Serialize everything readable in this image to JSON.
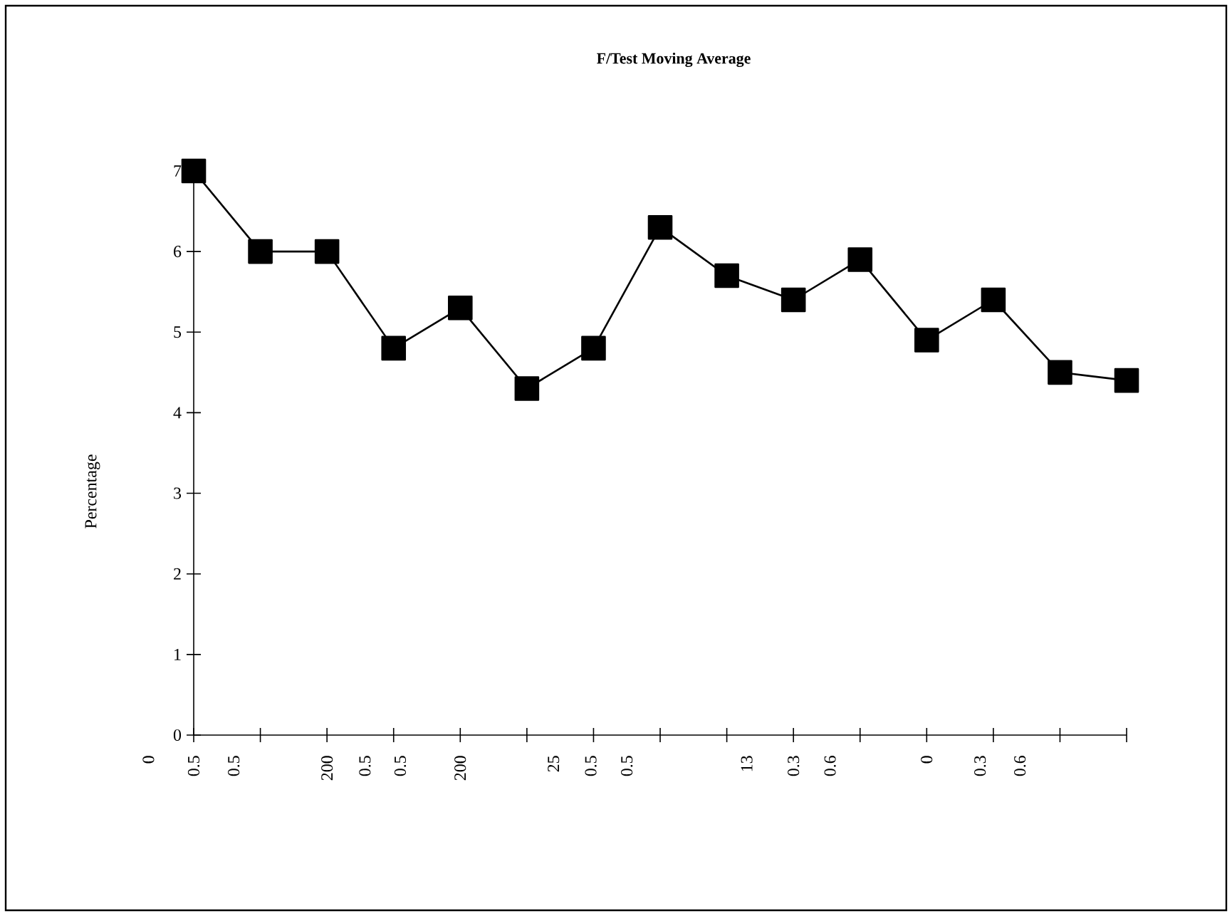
{
  "chart_data": {
    "type": "line",
    "title": "F/Test Moving Average",
    "ylabel": "Percentage",
    "categories": [
      null,
      null,
      null,
      null,
      null,
      null,
      null,
      null,
      null,
      null,
      null,
      null,
      null,
      null,
      null
    ],
    "values": [
      7,
      6,
      6,
      4.8,
      5.3,
      4.3,
      4.8,
      6.3,
      5.7,
      5.4,
      5.9,
      4.9,
      5.4,
      4.5,
      4.4
    ],
    "color": "#000000",
    "marker": "square",
    "line_style": "solid",
    "grid": false,
    "tick_labels": "y",
    "ylim": [
      0,
      7
    ],
    "yticks": [
      0,
      1,
      2,
      3,
      4,
      5,
      6,
      7
    ],
    "annotations": [
      "0",
      "0.5",
      "0.5",
      "200",
      "0.5",
      "0.5",
      "200",
      "25",
      "0.5",
      "0.5",
      "13",
      "0.3",
      "0.6",
      "0",
      "0.3",
      "0.6"
    ]
  }
}
